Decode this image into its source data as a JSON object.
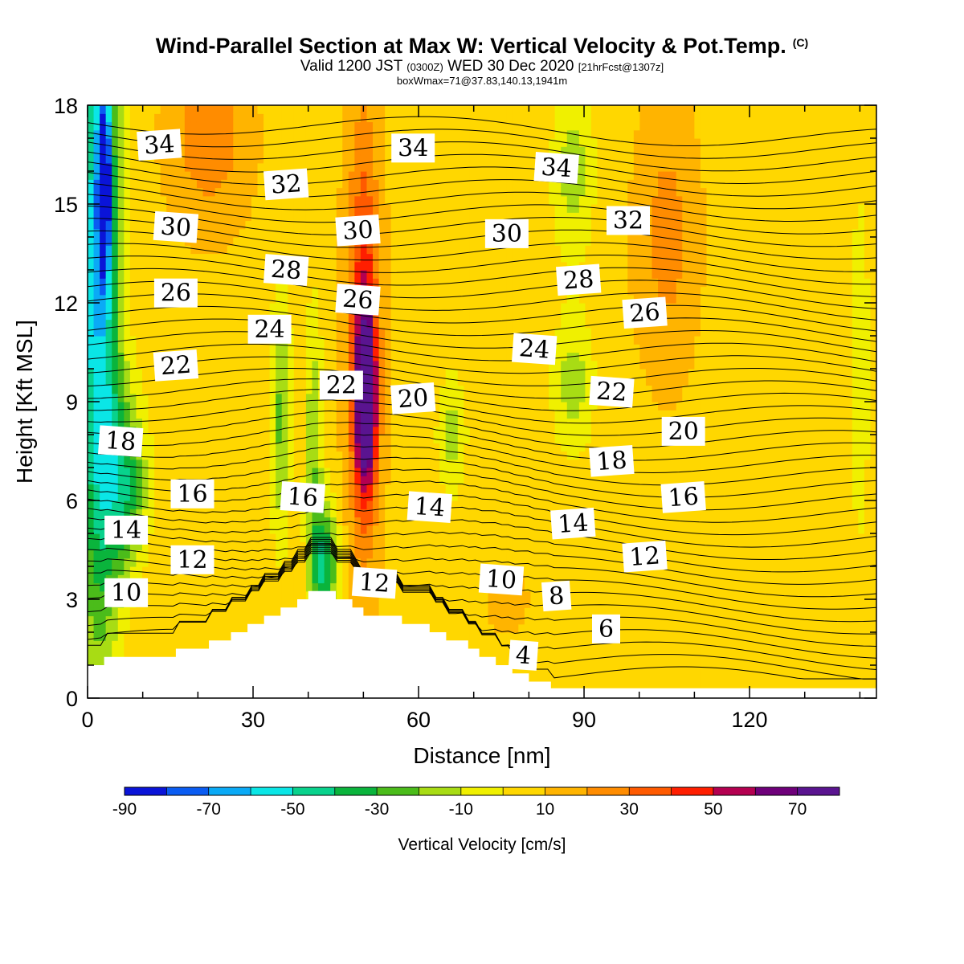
{
  "header": {
    "title": "Wind-Parallel Section at Max W: Vertical Velocity & Pot.Temp.",
    "copyright": "(C)",
    "valid_prefix": "Valid 1200 JST",
    "valid_utc": "(0300Z)",
    "valid_date": "WED 30 Dec 2020",
    "forecast": "[21hrFcst@1307z]",
    "box_info": "boxWmax=71@37.83,140.13,1941m"
  },
  "chart_data": {
    "type": "heatmap",
    "xlabel": "Distance [nm]",
    "ylabel": "Height [Kft MSL]",
    "xlim": [
      0,
      143
    ],
    "ylim": [
      0,
      18
    ],
    "x_ticks": [
      0,
      30,
      60,
      90,
      120
    ],
    "y_ticks": [
      0,
      3,
      6,
      9,
      12,
      15,
      18
    ],
    "grid": false,
    "colorbar": {
      "title": "Vertical Velocity [cm/s]",
      "levels": [
        -90,
        -80,
        -70,
        -60,
        -50,
        -40,
        -30,
        -20,
        -10,
        0,
        10,
        20,
        30,
        40,
        50,
        60,
        70,
        80
      ],
      "tick_labels": [
        "-90",
        "-70",
        "-50",
        "-30",
        "-10",
        "10",
        "30",
        "50",
        "70"
      ],
      "colors": [
        "#0a14d8",
        "#0a5cf2",
        "#0aaaf6",
        "#0ae6e6",
        "#08d28c",
        "#0ab43c",
        "#4bbc1a",
        "#a8dc14",
        "#f0f000",
        "#ffd700",
        "#ffb400",
        "#ff8c00",
        "#ff5a00",
        "#ff1e00",
        "#b40050",
        "#6e007a",
        "#5a1490"
      ]
    },
    "background_value": 8,
    "velocity_features": [
      {
        "x": 2,
        "y": 13,
        "rx": 5,
        "ry": 15,
        "value": -62
      },
      {
        "x": 3,
        "y": 15.5,
        "rx": 1.2,
        "ry": 2.8,
        "value": -85
      },
      {
        "x": 7,
        "y": 6.5,
        "rx": 5,
        "ry": 3.5,
        "value": -32
      },
      {
        "x": 22,
        "y": 17,
        "rx": 8,
        "ry": 3,
        "value": 28
      },
      {
        "x": 35,
        "y": 8.5,
        "rx": 2.5,
        "ry": 5,
        "value": -22
      },
      {
        "x": 41,
        "y": 7.5,
        "rx": 2.2,
        "ry": 6,
        "value": -18
      },
      {
        "x": 43,
        "y": 4,
        "rx": 3,
        "ry": 2.5,
        "value": -38
      },
      {
        "x": 50,
        "y": 11,
        "rx": 3.5,
        "ry": 8,
        "value": 48
      },
      {
        "x": 50.5,
        "y": 9,
        "rx": 2.3,
        "ry": 3.2,
        "value": 75
      },
      {
        "x": 66,
        "y": 8,
        "rx": 3.5,
        "ry": 2.5,
        "value": -14
      },
      {
        "x": 88,
        "y": 16,
        "rx": 5,
        "ry": 3.5,
        "value": -15
      },
      {
        "x": 88,
        "y": 9.5,
        "rx": 5,
        "ry": 2.8,
        "value": -15
      },
      {
        "x": 105,
        "y": 14,
        "rx": 6,
        "ry": 4.5,
        "value": 25
      },
      {
        "x": 76,
        "y": 3,
        "rx": 6,
        "ry": 1.5,
        "value": 12
      },
      {
        "x": 140,
        "y": 10,
        "rx": 3,
        "ry": 9,
        "value": -5
      }
    ],
    "terrain_profile": [
      [
        0,
        1
      ],
      [
        3,
        1
      ],
      [
        3,
        1.25
      ],
      [
        16,
        1.25
      ],
      [
        16,
        1.5
      ],
      [
        22,
        1.5
      ],
      [
        22,
        1.75
      ],
      [
        26,
        1.75
      ],
      [
        26,
        2
      ],
      [
        29,
        2
      ],
      [
        29,
        2.25
      ],
      [
        32,
        2.25
      ],
      [
        32,
        2.5
      ],
      [
        35,
        2.5
      ],
      [
        35,
        2.75
      ],
      [
        38,
        2.75
      ],
      [
        38,
        3
      ],
      [
        40,
        3
      ],
      [
        40,
        3.25
      ],
      [
        45,
        3.25
      ],
      [
        45,
        3
      ],
      [
        48,
        3
      ],
      [
        48,
        2.75
      ],
      [
        50,
        2.75
      ],
      [
        50,
        2.5
      ],
      [
        57,
        2.5
      ],
      [
        57,
        2.25
      ],
      [
        62,
        2.25
      ],
      [
        62,
        2
      ],
      [
        65,
        2
      ],
      [
        65,
        1.75
      ],
      [
        69,
        1.75
      ],
      [
        69,
        1.5
      ],
      [
        71,
        1.5
      ],
      [
        71,
        1.25
      ],
      [
        74,
        1.25
      ],
      [
        74,
        1
      ],
      [
        77,
        1
      ],
      [
        77,
        0.75
      ],
      [
        80,
        0.75
      ],
      [
        80,
        0.5
      ],
      [
        84,
        0.5
      ],
      [
        84,
        0.3
      ],
      [
        143,
        0.3
      ]
    ],
    "theta_contour_labels": [
      {
        "text": "34",
        "x": 13,
        "y": 16.8
      },
      {
        "text": "34",
        "x": 59,
        "y": 16.7
      },
      {
        "text": "34",
        "x": 85,
        "y": 16.1
      },
      {
        "text": "32",
        "x": 36,
        "y": 15.6
      },
      {
        "text": "32",
        "x": 98,
        "y": 14.5
      },
      {
        "text": "30",
        "x": 16,
        "y": 14.3
      },
      {
        "text": "30",
        "x": 49,
        "y": 14.2
      },
      {
        "text": "30",
        "x": 76,
        "y": 14.1
      },
      {
        "text": "28",
        "x": 36,
        "y": 13
      },
      {
        "text": "28",
        "x": 89,
        "y": 12.7
      },
      {
        "text": "26",
        "x": 16,
        "y": 12.3
      },
      {
        "text": "26",
        "x": 49,
        "y": 12.1
      },
      {
        "text": "26",
        "x": 101,
        "y": 11.7
      },
      {
        "text": "24",
        "x": 33,
        "y": 11.2
      },
      {
        "text": "24",
        "x": 81,
        "y": 10.6
      },
      {
        "text": "22",
        "x": 16,
        "y": 10.1
      },
      {
        "text": "22",
        "x": 46,
        "y": 9.5
      },
      {
        "text": "22",
        "x": 95,
        "y": 9.3
      },
      {
        "text": "20",
        "x": 59,
        "y": 9.1
      },
      {
        "text": "20",
        "x": 108,
        "y": 8.1
      },
      {
        "text": "18",
        "x": 6,
        "y": 7.8
      },
      {
        "text": "18",
        "x": 95,
        "y": 7.2
      },
      {
        "text": "16",
        "x": 19,
        "y": 6.2
      },
      {
        "text": "16",
        "x": 39,
        "y": 6.1
      },
      {
        "text": "16",
        "x": 108,
        "y": 6.1
      },
      {
        "text": "14",
        "x": 7,
        "y": 5.1
      },
      {
        "text": "14",
        "x": 62,
        "y": 5.8
      },
      {
        "text": "14",
        "x": 88,
        "y": 5.3
      },
      {
        "text": "12",
        "x": 19,
        "y": 4.2
      },
      {
        "text": "12",
        "x": 52,
        "y": 3.5
      },
      {
        "text": "12",
        "x": 101,
        "y": 4.3
      },
      {
        "text": "10",
        "x": 7,
        "y": 3.2
      },
      {
        "text": "10",
        "x": 75,
        "y": 3.6
      },
      {
        "text": "8",
        "x": 85,
        "y": 3.1
      },
      {
        "text": "6",
        "x": 94,
        "y": 2.1
      },
      {
        "text": "4",
        "x": 79,
        "y": 1.3
      }
    ]
  }
}
